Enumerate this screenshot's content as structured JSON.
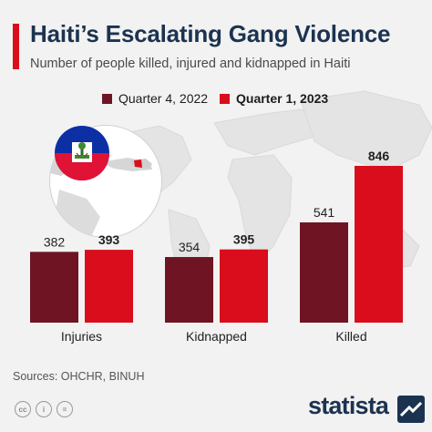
{
  "header": {
    "title": "Haiti’s Escalating Gang Violence",
    "subtitle": "Number of people killed, injured and kidnapped in Haiti"
  },
  "legend": {
    "items": [
      {
        "label": "Quarter 4, 2022",
        "color": "#6e1423"
      },
      {
        "label": "Quarter 1, 2023",
        "color": "#d90d1b"
      }
    ]
  },
  "chart_data": {
    "type": "bar",
    "title": "Haiti’s Escalating Gang Violence",
    "subtitle": "Number of people killed, injured and kidnapped in Haiti",
    "categories": [
      "Injuries",
      "Kidnapped",
      "Killed"
    ],
    "series": [
      {
        "name": "Quarter 4, 2022",
        "values": [
          382,
          354,
          541
        ],
        "color": "#6e1423"
      },
      {
        "name": "Quarter 1, 2023",
        "values": [
          393,
          395,
          846
        ],
        "color": "#d90d1b"
      }
    ],
    "ylim": [
      0,
      900
    ],
    "grid": false,
    "legend_position": "top"
  },
  "footer": {
    "sources": "Sources: OHCHR, BINUH",
    "logo": "statista",
    "license_icons": [
      "cc-icon",
      "attribution-icon",
      "no-derivatives-icon"
    ]
  },
  "colors": {
    "title": "#1c3350",
    "accent": "#d90d1b",
    "dark": "#6e1423",
    "background": "#f2f2f2"
  }
}
